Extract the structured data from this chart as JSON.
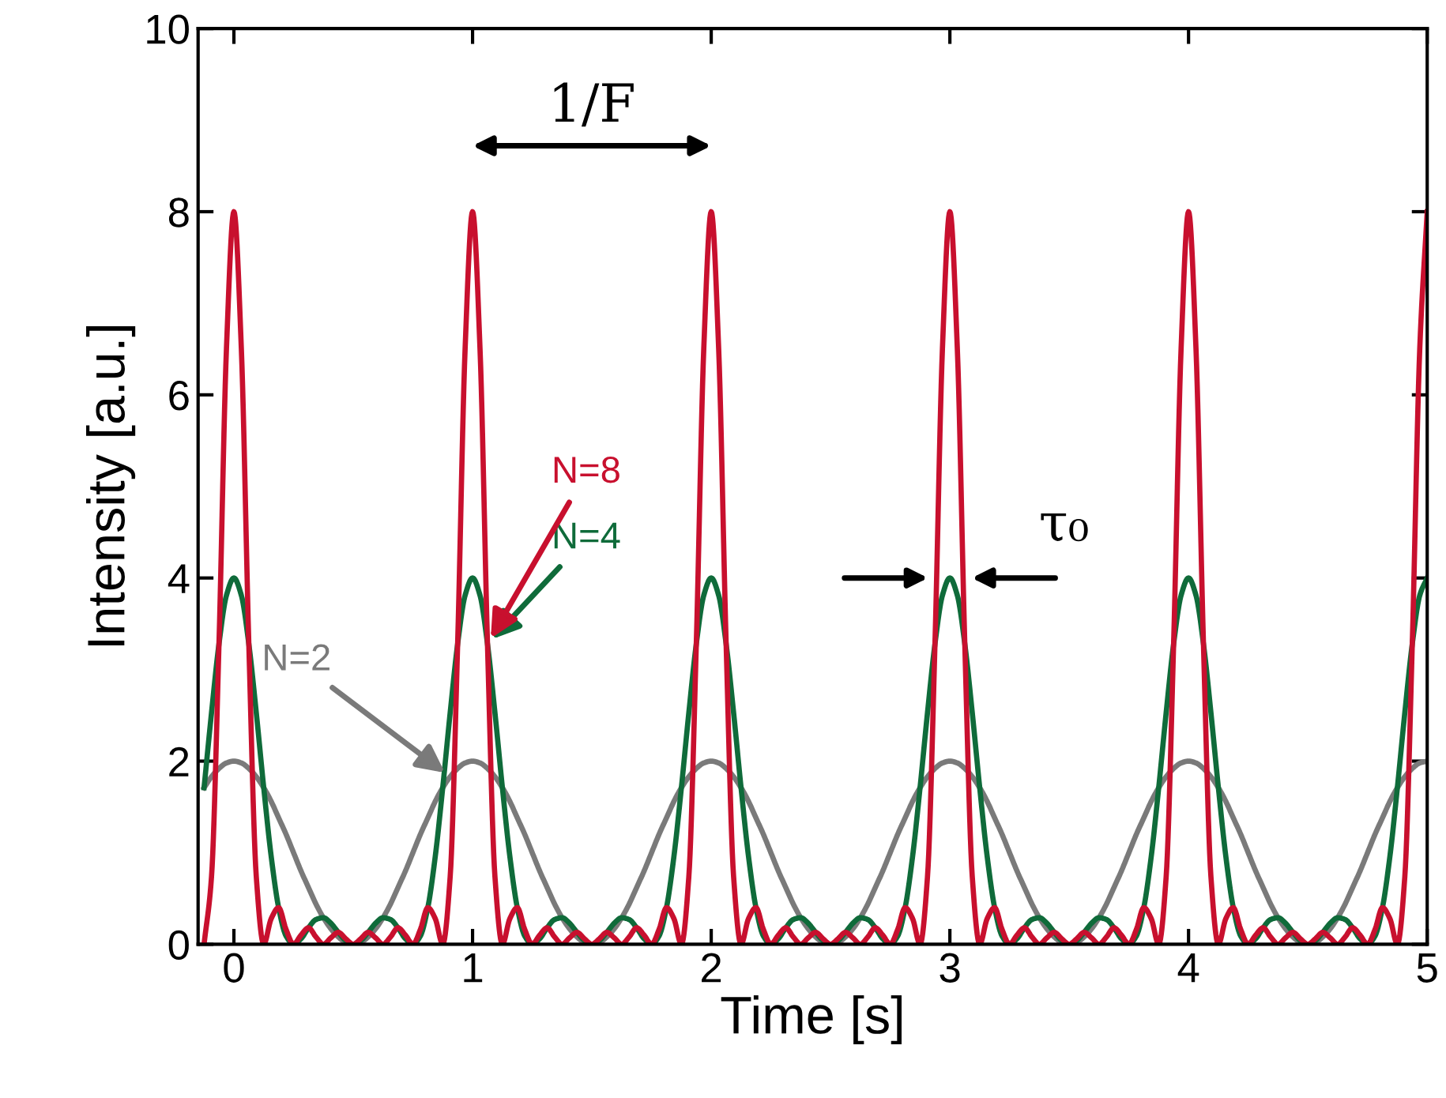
{
  "chart_data": {
    "type": "line",
    "xlabel": "Time [s]",
    "ylabel": "Intensity [a.u.]",
    "xlim": [
      -0.15,
      5
    ],
    "ylim": [
      0,
      10
    ],
    "xticks": [
      0,
      1,
      2,
      3,
      4,
      5
    ],
    "yticks": [
      0,
      2,
      4,
      6,
      8,
      10
    ],
    "grid": false,
    "legend": false,
    "marker": "none",
    "line_style": "solid",
    "x": [
      -0.125,
      -0.09375,
      -0.0625,
      -0.03125,
      0,
      0.03125,
      0.0625,
      0.09375,
      0.125,
      0.15625,
      0.1875,
      0.21875,
      0.25,
      0.28125,
      0.3125,
      0.34375,
      0.375,
      0.40625,
      0.4375,
      0.46875,
      0.5,
      0.53125,
      0.5625,
      0.59375,
      0.625,
      0.65625,
      0.6875,
      0.71875,
      0.75,
      0.78125,
      0.8125,
      0.84375,
      0.875,
      0.90625,
      0.9375,
      0.96875,
      1,
      1.03125,
      1.0625,
      1.09375,
      1.125,
      1.15625,
      1.1875,
      1.21875,
      1.25,
      1.28125,
      1.3125,
      1.34375,
      1.375,
      1.40625,
      1.4375,
      1.46875,
      1.5,
      1.53125,
      1.5625,
      1.59375,
      1.625,
      1.65625,
      1.6875,
      1.71875,
      1.75,
      1.78125,
      1.8125,
      1.84375,
      1.875,
      1.90625,
      1.9375,
      1.96875,
      2,
      2.03125,
      2.0625,
      2.09375,
      2.125,
      2.15625,
      2.1875,
      2.21875,
      2.25,
      2.28125,
      2.3125,
      2.34375,
      2.375,
      2.40625,
      2.4375,
      2.46875,
      2.5,
      2.53125,
      2.5625,
      2.59375,
      2.625,
      2.65625,
      2.6875,
      2.71875,
      2.75,
      2.78125,
      2.8125,
      2.84375,
      2.875,
      2.90625,
      2.9375,
      2.96875,
      3,
      3.03125,
      3.0625,
      3.09375,
      3.125,
      3.15625,
      3.1875,
      3.21875,
      3.25,
      3.28125,
      3.3125,
      3.34375,
      3.375,
      3.40625,
      3.4375,
      3.46875,
      3.5,
      3.53125,
      3.5625,
      3.59375,
      3.625,
      3.65625,
      3.6875,
      3.71875,
      3.75,
      3.78125,
      3.8125,
      3.84375,
      3.875,
      3.90625,
      3.9375,
      3.96875,
      4,
      4.03125,
      4.0625,
      4.09375,
      4.125,
      4.15625,
      4.1875,
      4.21875,
      4.25,
      4.28125,
      4.3125,
      4.34375,
      4.375,
      4.40625,
      4.4375,
      4.46875,
      4.5,
      4.53125,
      4.5625,
      4.59375,
      4.625,
      4.65625,
      4.6875,
      4.71875,
      4.75,
      4.78125,
      4.8125,
      4.84375,
      4.875,
      4.90625,
      4.9375,
      4.96875,
      5
    ],
    "series": [
      {
        "name": "N=2",
        "color": "#7a7a7a",
        "values": [
          1.71,
          1.83,
          1.92,
          1.98,
          2,
          1.98,
          1.92,
          1.83,
          1.71,
          1.56,
          1.38,
          1.2,
          1,
          0.8,
          0.62,
          0.44,
          0.29,
          0.17,
          0.08,
          0.02,
          0,
          0.02,
          0.08,
          0.17,
          0.29,
          0.44,
          0.62,
          0.8,
          1,
          1.2,
          1.38,
          1.56,
          1.71,
          1.83,
          1.92,
          1.98,
          2,
          1.98,
          1.92,
          1.83,
          1.71,
          1.56,
          1.38,
          1.2,
          1,
          0.8,
          0.62,
          0.44,
          0.29,
          0.17,
          0.08,
          0.02,
          0,
          0.02,
          0.08,
          0.17,
          0.29,
          0.44,
          0.62,
          0.8,
          1,
          1.2,
          1.38,
          1.56,
          1.71,
          1.83,
          1.92,
          1.98,
          2,
          1.98,
          1.92,
          1.83,
          1.71,
          1.56,
          1.38,
          1.2,
          1,
          0.8,
          0.62,
          0.44,
          0.29,
          0.17,
          0.08,
          0.02,
          0,
          0.02,
          0.08,
          0.17,
          0.29,
          0.44,
          0.62,
          0.8,
          1,
          1.2,
          1.38,
          1.56,
          1.71,
          1.83,
          1.92,
          1.98,
          2,
          1.98,
          1.92,
          1.83,
          1.71,
          1.56,
          1.38,
          1.2,
          1,
          0.8,
          0.62,
          0.44,
          0.29,
          0.17,
          0.08,
          0.02,
          0,
          0.02,
          0.08,
          0.17,
          0.29,
          0.44,
          0.62,
          0.8,
          1,
          1.2,
          1.38,
          1.56,
          1.71,
          1.83,
          1.92,
          1.98,
          2,
          1.98,
          1.92,
          1.83,
          1.71,
          1.56,
          1.38,
          1.2,
          1,
          0.8,
          0.62,
          0.44,
          0.29,
          0.17,
          0.08,
          0.02,
          0,
          0.02,
          0.08,
          0.17,
          0.29,
          0.44,
          0.62,
          0.8,
          1,
          1.2,
          1.38,
          1.56,
          1.71,
          1.83,
          1.92,
          1.98,
          2
        ]
      },
      {
        "name": "N=4",
        "color": "#0f6b3a",
        "values": [
          1.71,
          2.53,
          3.28,
          3.81,
          4,
          3.81,
          3.28,
          2.53,
          1.71,
          0.96,
          0.4,
          0.09,
          0,
          0.06,
          0.18,
          0.27,
          0.29,
          0.23,
          0.13,
          0.04,
          0,
          0.04,
          0.13,
          0.23,
          0.29,
          0.27,
          0.18,
          0.06,
          0,
          0.09,
          0.4,
          0.96,
          1.71,
          2.53,
          3.28,
          3.81,
          4,
          3.81,
          3.28,
          2.53,
          1.71,
          0.96,
          0.4,
          0.09,
          0,
          0.06,
          0.18,
          0.27,
          0.29,
          0.23,
          0.13,
          0.04,
          0,
          0.04,
          0.13,
          0.23,
          0.29,
          0.27,
          0.18,
          0.06,
          0,
          0.09,
          0.4,
          0.96,
          1.71,
          2.53,
          3.28,
          3.81,
          4,
          3.81,
          3.28,
          2.53,
          1.71,
          0.96,
          0.4,
          0.09,
          0,
          0.06,
          0.18,
          0.27,
          0.29,
          0.23,
          0.13,
          0.04,
          0,
          0.04,
          0.13,
          0.23,
          0.29,
          0.27,
          0.18,
          0.06,
          0,
          0.09,
          0.4,
          0.96,
          1.71,
          2.53,
          3.28,
          3.81,
          4,
          3.81,
          3.28,
          2.53,
          1.71,
          0.96,
          0.4,
          0.09,
          0,
          0.06,
          0.18,
          0.27,
          0.29,
          0.23,
          0.13,
          0.04,
          0,
          0.04,
          0.13,
          0.23,
          0.29,
          0.27,
          0.18,
          0.06,
          0,
          0.09,
          0.4,
          0.96,
          1.71,
          2.53,
          3.28,
          3.81,
          4,
          3.81,
          3.28,
          2.53,
          1.71,
          0.96,
          0.4,
          0.09,
          0,
          0.06,
          0.18,
          0.27,
          0.29,
          0.23,
          0.13,
          0.04,
          0,
          0.04,
          0.13,
          0.23,
          0.29,
          0.27,
          0.18,
          0.06,
          0,
          0.09,
          0.4,
          0.96,
          1.71,
          2.53,
          3.28,
          3.81,
          4
        ]
      },
      {
        "name": "N=8",
        "color": "#c8102e",
        "values": [
          0,
          0.74,
          3.28,
          6.5,
          8,
          6.5,
          3.28,
          0.74,
          0,
          0.28,
          0.4,
          0.16,
          0,
          0.1,
          0.18,
          0.08,
          0,
          0.07,
          0.13,
          0.06,
          0,
          0.06,
          0.13,
          0.07,
          0,
          0.08,
          0.18,
          0.1,
          0,
          0.16,
          0.4,
          0.28,
          0,
          0.74,
          3.28,
          6.5,
          8,
          6.5,
          3.28,
          0.74,
          0,
          0.28,
          0.4,
          0.16,
          0,
          0.1,
          0.18,
          0.08,
          0,
          0.07,
          0.13,
          0.06,
          0,
          0.06,
          0.13,
          0.07,
          0,
          0.08,
          0.18,
          0.1,
          0,
          0.16,
          0.4,
          0.28,
          0,
          0.74,
          3.28,
          6.5,
          8,
          6.5,
          3.28,
          0.74,
          0,
          0.28,
          0.4,
          0.16,
          0,
          0.1,
          0.18,
          0.08,
          0,
          0.07,
          0.13,
          0.06,
          0,
          0.06,
          0.13,
          0.07,
          0,
          0.08,
          0.18,
          0.1,
          0,
          0.16,
          0.4,
          0.28,
          0,
          0.74,
          3.28,
          6.5,
          8,
          6.5,
          3.28,
          0.74,
          0,
          0.28,
          0.4,
          0.16,
          0,
          0.1,
          0.18,
          0.08,
          0,
          0.07,
          0.13,
          0.06,
          0,
          0.06,
          0.13,
          0.07,
          0,
          0.08,
          0.18,
          0.1,
          0,
          0.16,
          0.4,
          0.28,
          0,
          0.74,
          3.28,
          6.5,
          8,
          6.5,
          3.28,
          0.74,
          0,
          0.28,
          0.4,
          0.16,
          0,
          0.1,
          0.18,
          0.08,
          0,
          0.07,
          0.13,
          0.06,
          0,
          0.06,
          0.13,
          0.07,
          0,
          0.08,
          0.18,
          0.1,
          0,
          0.16,
          0.4,
          0.28,
          0,
          0.74,
          3.28,
          6.5,
          8
        ]
      }
    ],
    "annotations": [
      "1/F",
      "τ₀"
    ]
  }
}
